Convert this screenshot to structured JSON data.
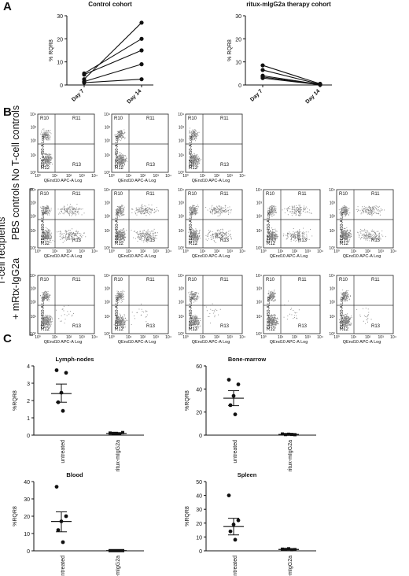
{
  "panels": {
    "a": "A",
    "b": "B",
    "c": "C"
  },
  "row_labels": {
    "no_tcell": "No T-cell controls",
    "tcell_recipients": "T-cell recipients",
    "pbs": "PBS controls",
    "mrtx": "+ mRtx-IgG2a"
  },
  "flow": {
    "gate_labels": [
      "R10",
      "R11",
      "R12",
      "R13"
    ],
    "x_axis_label": "QEnd10 APC-A Log",
    "y_axis_label": "CD8 e450-A Log",
    "x_ticks": [
      "10⁰",
      "10¹",
      "10²",
      "10³",
      "10⁴"
    ],
    "y_ticks": [
      "10⁰",
      "10¹",
      "10²",
      "10³",
      "10⁴"
    ]
  },
  "chart_data": [
    {
      "panel": "A",
      "type": "line",
      "title": "Control cohort",
      "ylabel": "% RQR8",
      "categories": [
        "Day 7",
        "Day 14"
      ],
      "ylim": [
        0,
        30
      ],
      "yticks": [
        0,
        10,
        20,
        30
      ],
      "grid": false,
      "series": [
        {
          "values": [
            2.5,
            27
          ]
        },
        {
          "values": [
            5,
            20
          ]
        },
        {
          "values": [
            4.5,
            15
          ]
        },
        {
          "values": [
            1.5,
            9
          ]
        },
        {
          "values": [
            1,
            2.5
          ]
        }
      ]
    },
    {
      "panel": "A",
      "type": "line",
      "title": "ritux-mIgG2a therapy cohort",
      "ylabel": "% RQR8",
      "categories": [
        "Day 7",
        "Day 14"
      ],
      "ylim": [
        0,
        30
      ],
      "yticks": [
        0,
        10,
        20,
        30
      ],
      "grid": false,
      "series": [
        {
          "values": [
            8.5,
            0.5
          ]
        },
        {
          "values": [
            6.5,
            0.3
          ]
        },
        {
          "values": [
            4,
            0.2
          ]
        },
        {
          "values": [
            3.5,
            0.1
          ]
        },
        {
          "values": [
            3,
            0.1
          ]
        }
      ]
    },
    {
      "panel": "C",
      "type": "scatter",
      "title": "Lymph-nodes",
      "ylabel": "%RQR8",
      "categories": [
        "untreated",
        "ritux-mIgG2a"
      ],
      "ylim": [
        0,
        4
      ],
      "yticks": [
        0,
        1,
        2,
        3,
        4
      ],
      "grid": false,
      "series": [
        {
          "values": [
            3.75,
            3.6,
            2.45,
            1.9,
            1.4
          ],
          "mean": 2.4,
          "sem_low": 1.9,
          "sem_high": 2.95
        },
        {
          "values": [
            0.12,
            0.1,
            0.1,
            0.08,
            0.15
          ],
          "mean": 0.1,
          "sem_low": 0.07,
          "sem_high": 0.13
        }
      ]
    },
    {
      "panel": "C",
      "type": "scatter",
      "title": "Bone-marrow",
      "ylabel": "%RQR8",
      "categories": [
        "untreated",
        "ritux-mIgG2a"
      ],
      "ylim": [
        0,
        60
      ],
      "yticks": [
        0,
        20,
        40,
        60
      ],
      "grid": false,
      "series": [
        {
          "values": [
            48,
            44,
            34,
            26,
            18
          ],
          "mean": 32,
          "sem_low": 25.5,
          "sem_high": 38.5
        },
        {
          "values": [
            1,
            0.5,
            0.8,
            0.6,
            0.4
          ],
          "mean": 0.6,
          "sem_low": 0.4,
          "sem_high": 0.8
        }
      ]
    },
    {
      "panel": "C",
      "type": "scatter",
      "title": "Blood",
      "ylabel": "%RQR8",
      "categories": [
        "Untreated",
        "ritux-mIgG2a"
      ],
      "ylim": [
        0,
        40
      ],
      "yticks": [
        0,
        10,
        20,
        30,
        40
      ],
      "grid": false,
      "series": [
        {
          "values": [
            37,
            20,
            17,
            12,
            5
          ],
          "mean": 17,
          "sem_low": 11,
          "sem_high": 22.5
        },
        {
          "values": [
            0.1,
            0.1,
            0.1,
            0.1,
            0.1
          ],
          "mean": 0.1,
          "sem_low": 0.05,
          "sem_high": 0.15
        }
      ]
    },
    {
      "panel": "C",
      "type": "scatter",
      "title": "Spleen",
      "ylabel": "%RQR8",
      "categories": [
        "untreated",
        "ritux-mIgG2a"
      ],
      "ylim": [
        0,
        50
      ],
      "yticks": [
        0,
        10,
        20,
        30,
        40,
        50
      ],
      "grid": false,
      "series": [
        {
          "values": [
            40,
            22,
            19,
            14,
            8
          ],
          "mean": 17.5,
          "sem_low": 11.5,
          "sem_high": 23.5
        },
        {
          "values": [
            1.2,
            1,
            1.5,
            0.8,
            0.9
          ],
          "mean": 1,
          "sem_low": 0.7,
          "sem_high": 1.3
        }
      ]
    }
  ]
}
